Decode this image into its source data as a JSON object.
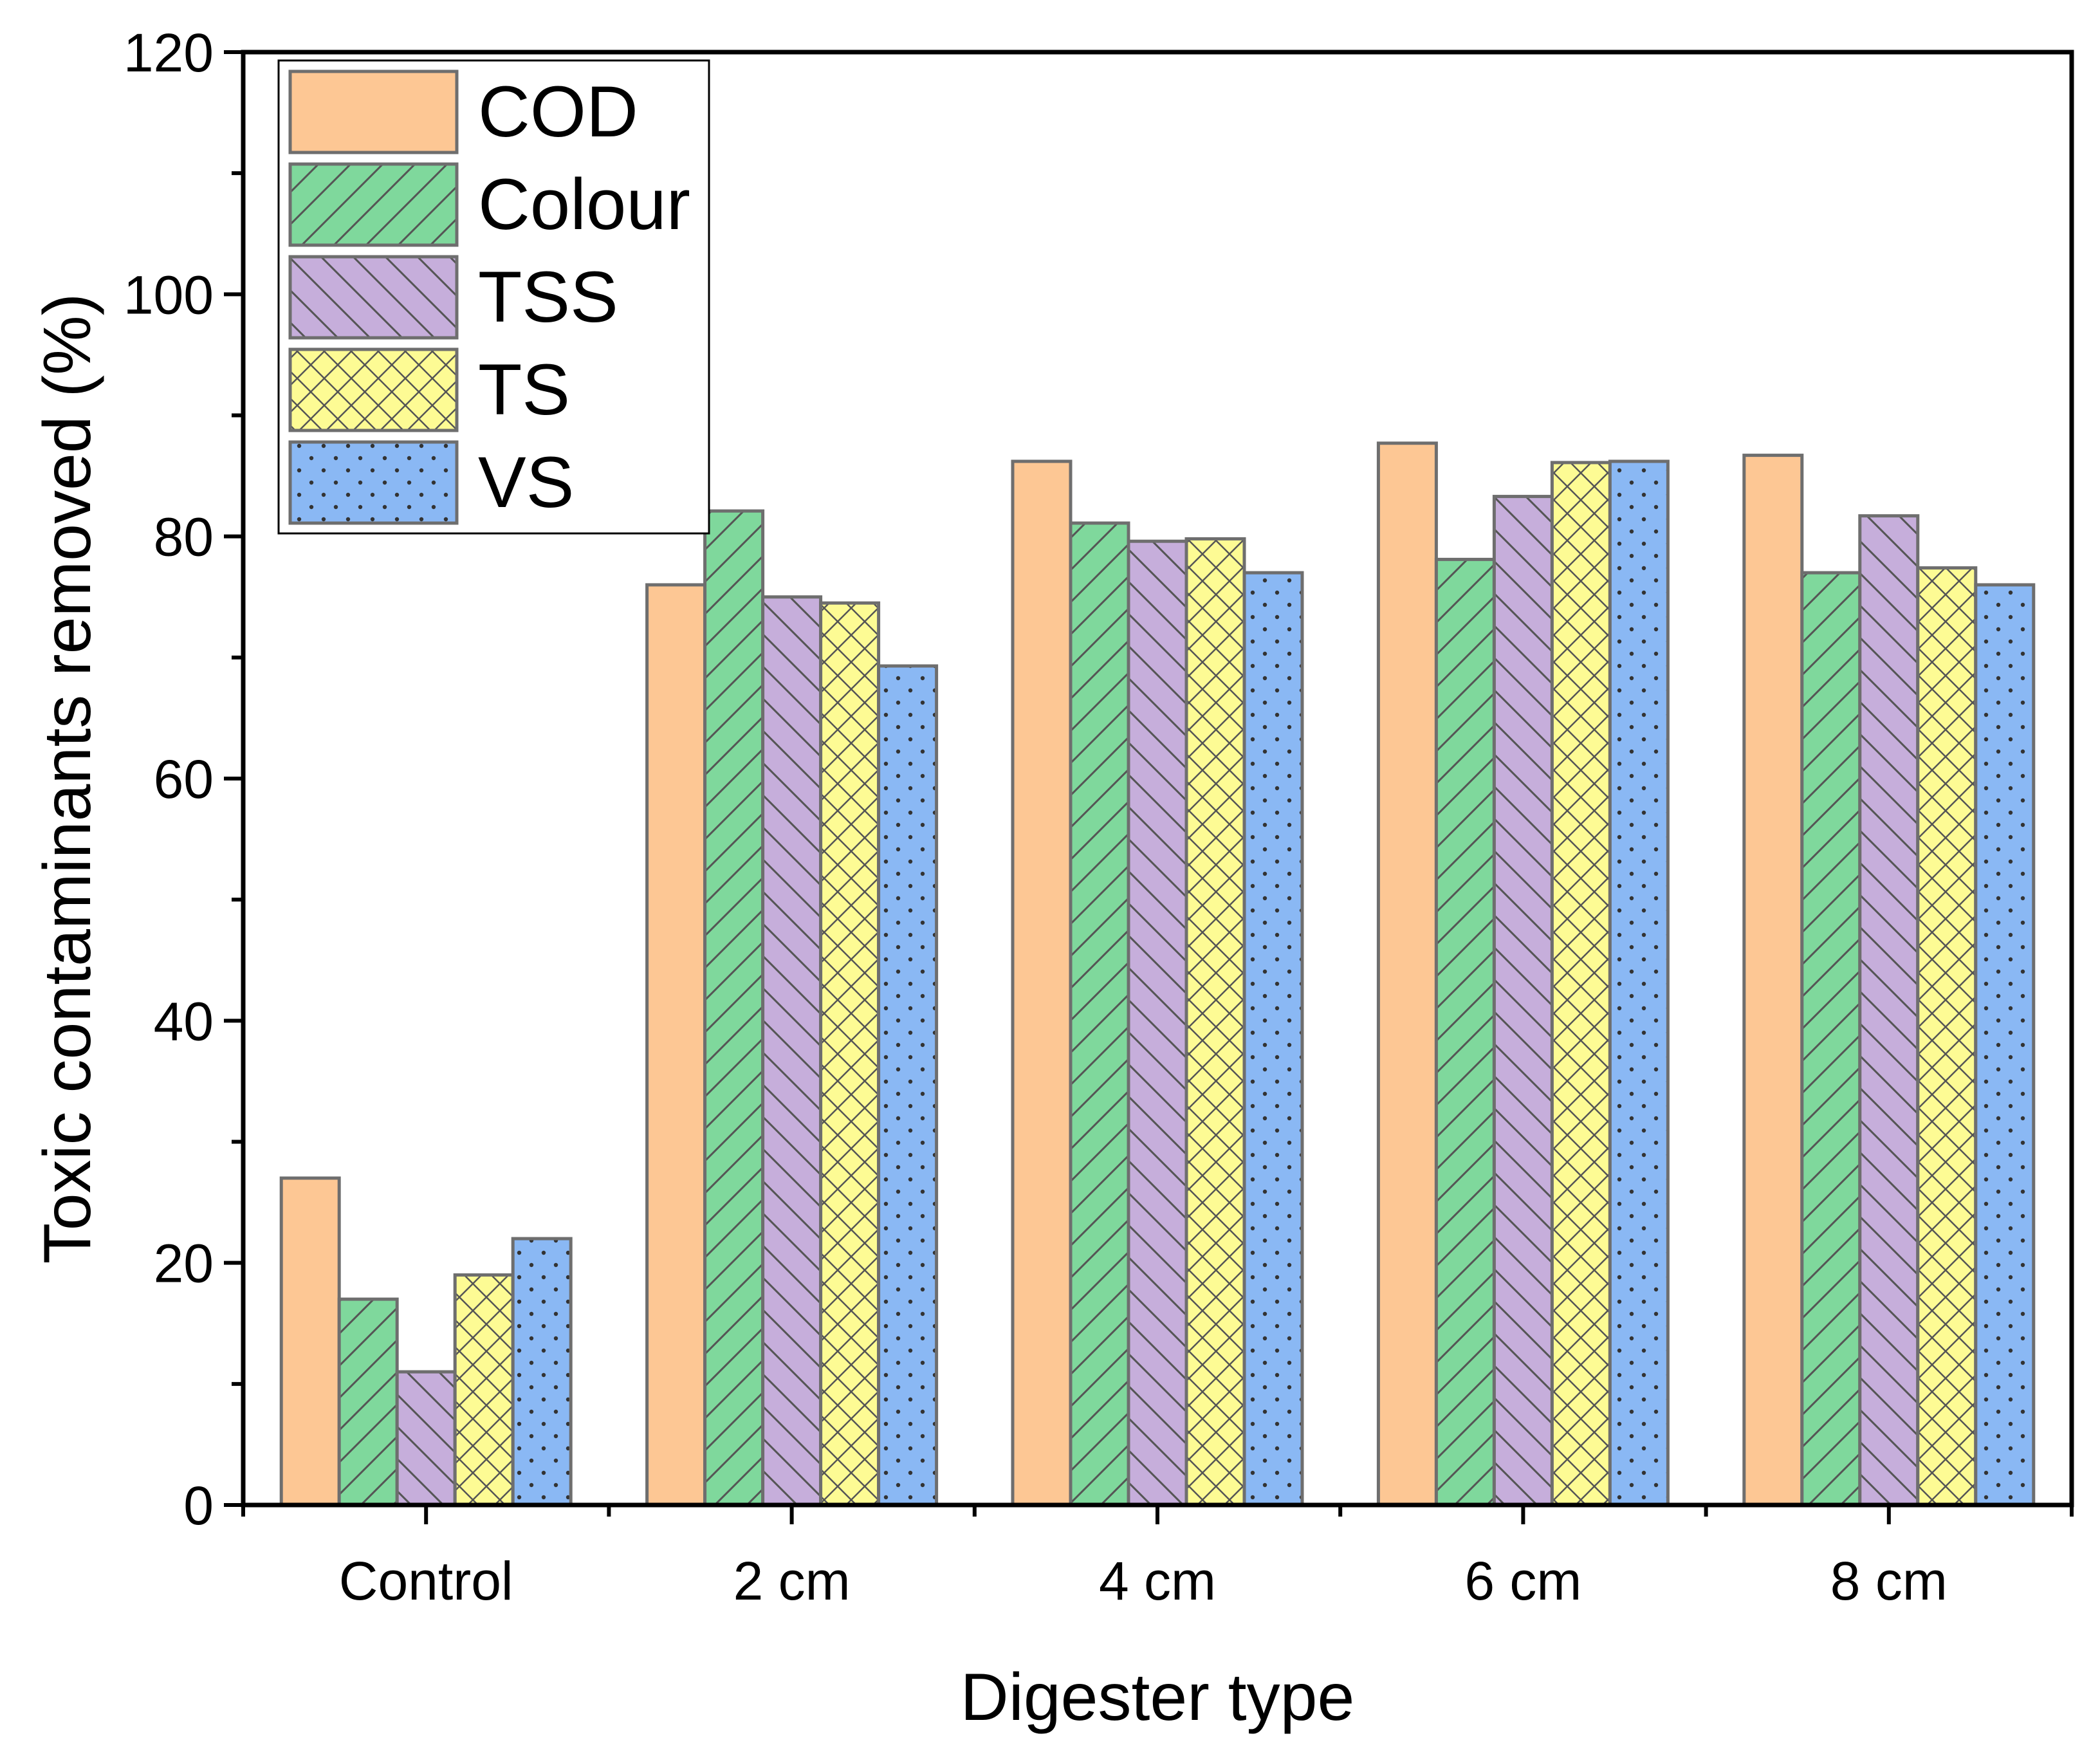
{
  "chart_data": {
    "type": "bar",
    "title": "",
    "xlabel": "Digester type",
    "ylabel": "Toxic contaminants removed (%)",
    "ylim": [
      0,
      120
    ],
    "yticks": [
      0,
      20,
      40,
      60,
      80,
      100,
      120
    ],
    "grid": false,
    "legend_position": "top-left",
    "categories": [
      "Control",
      "2 cm",
      "4 cm",
      "6 cm",
      "8 cm"
    ],
    "series": [
      {
        "name": "COD",
        "values": [
          27,
          76,
          86.2,
          87.7,
          86.7
        ],
        "color": "#fdc794",
        "pattern": "solid"
      },
      {
        "name": "Colour",
        "values": [
          17,
          82.1,
          81.1,
          78.1,
          77
        ],
        "color": "#7fd89c",
        "pattern": "forward-diagonal"
      },
      {
        "name": "TSS",
        "values": [
          11,
          75,
          79.6,
          83.3,
          81.7
        ],
        "color": "#c6aedb",
        "pattern": "back-diagonal"
      },
      {
        "name": "TS",
        "values": [
          19,
          74.5,
          79.8,
          86.1,
          77.4
        ],
        "color": "#fdfb94",
        "pattern": "crosshatch"
      },
      {
        "name": "VS",
        "values": [
          22,
          69.3,
          77,
          86.2,
          76
        ],
        "color": "#8ab8f4",
        "pattern": "dots"
      }
    ]
  }
}
